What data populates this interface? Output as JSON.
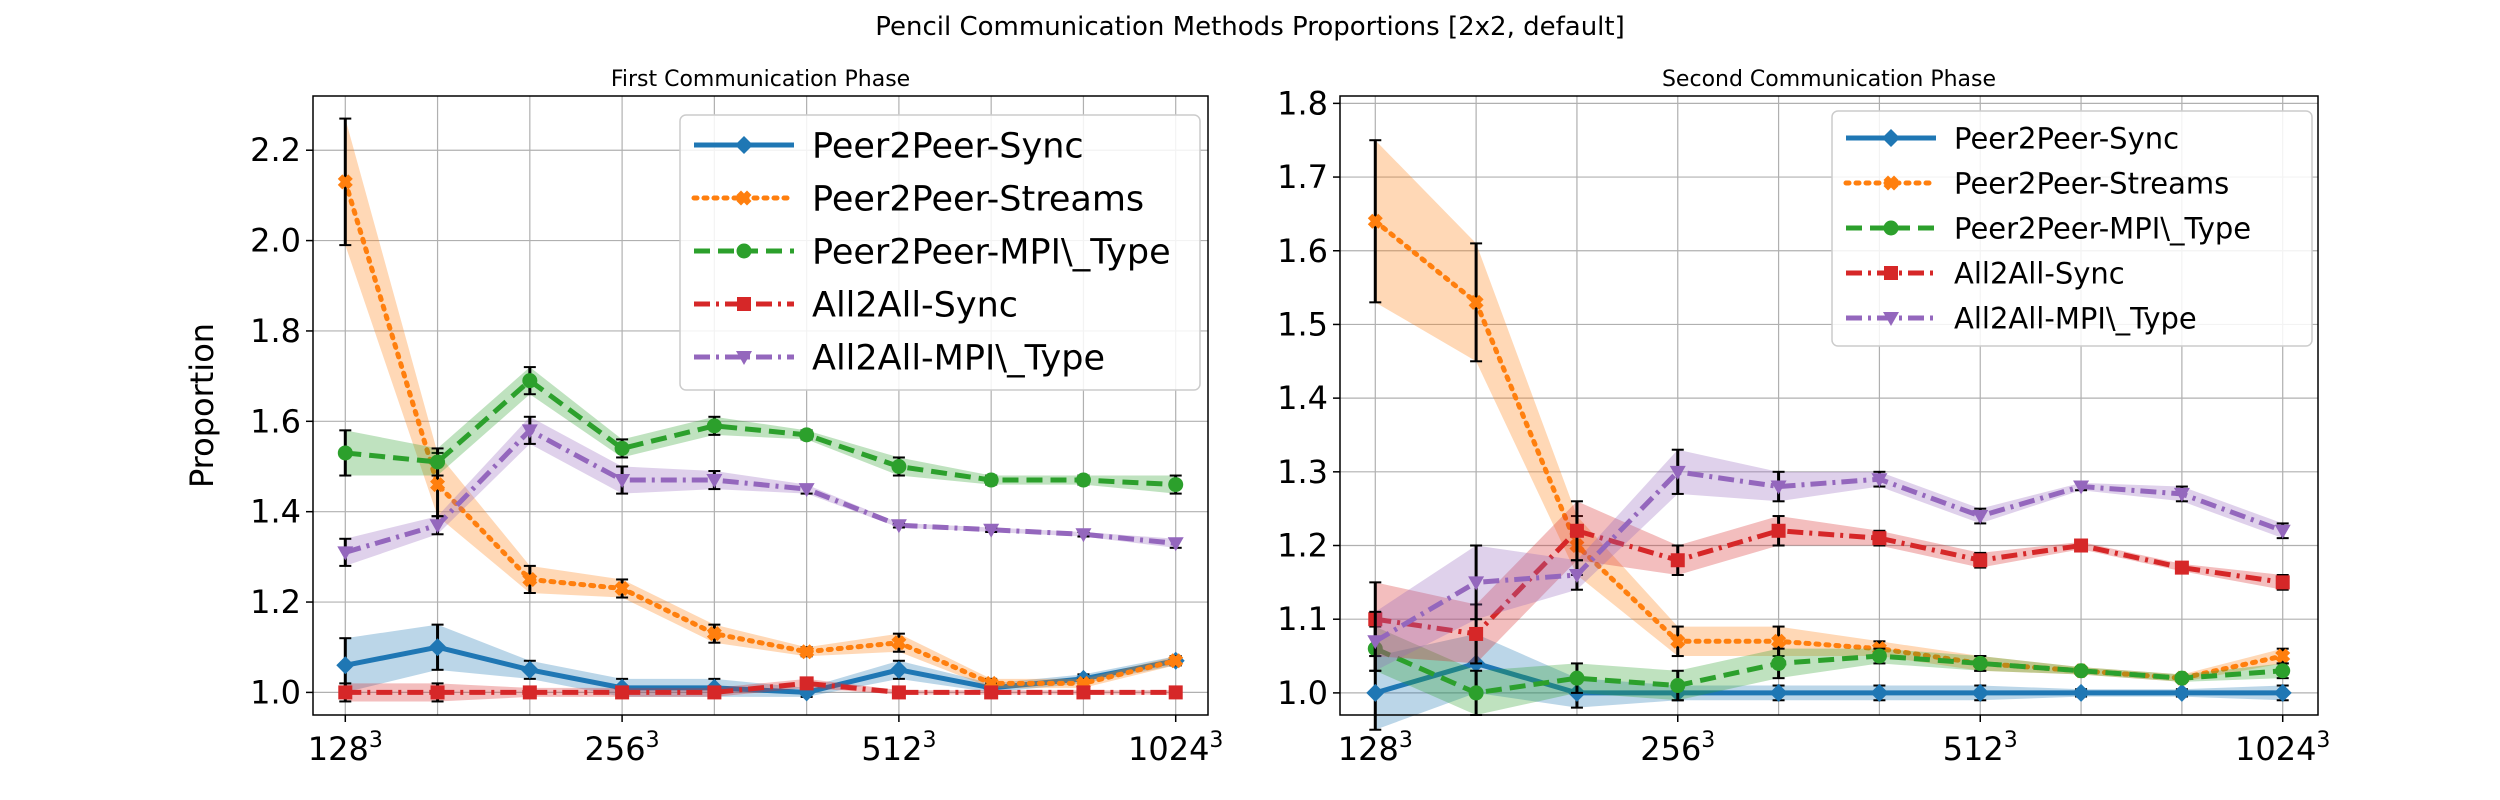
{
  "figure": {
    "title": "Pencil Communication Methods Proportions [2x2, default]"
  },
  "series_styles": [
    {
      "name": "Peer2Peer-Sync",
      "color": "#1f77b4",
      "dash": "",
      "marker": "diamond"
    },
    {
      "name": "Peer2Peer-Streams",
      "color": "#ff7f0e",
      "dash": "dot",
      "marker": "x"
    },
    {
      "name": "Peer2Peer-MPI\\_Type",
      "color": "#2ca02c",
      "dash": "dash",
      "marker": "circle"
    },
    {
      "name": "All2All-Sync",
      "color": "#d62728",
      "dash": "dashdot",
      "marker": "square"
    },
    {
      "name": "All2All-MPI\\_Type",
      "color": "#9467bd",
      "dash": "dashdot",
      "marker": "triangle-down"
    }
  ],
  "chart_data": [
    {
      "type": "line",
      "title": "First Communication Phase",
      "xlabel": "",
      "ylabel": "Proportion",
      "x": [
        0,
        1,
        2,
        3,
        4,
        5,
        6,
        7,
        8,
        9
      ],
      "x_ticks": [
        {
          "x": 0,
          "base": "128",
          "exp": "3"
        },
        {
          "x": 3,
          "base": "256",
          "exp": "3"
        },
        {
          "x": 6,
          "base": "512",
          "exp": "3"
        },
        {
          "x": 9,
          "base": "1024",
          "exp": "3"
        }
      ],
      "ylim": [
        0.95,
        2.32
      ],
      "yticks": [
        1.0,
        1.2,
        1.4,
        1.6,
        1.8,
        2.0,
        2.2
      ],
      "grid": true,
      "legend_position": "top-right",
      "series": [
        {
          "name": "Peer2Peer-Sync",
          "values": [
            1.06,
            1.1,
            1.05,
            1.01,
            1.01,
            1.0,
            1.05,
            1.01,
            1.03,
            1.07
          ],
          "err": [
            0.06,
            0.05,
            0.02,
            0.02,
            0.02,
            0.01,
            0.02,
            0.01,
            0.01,
            0.01
          ]
        },
        {
          "name": "Peer2Peer-Streams",
          "values": [
            2.13,
            1.46,
            1.25,
            1.23,
            1.13,
            1.09,
            1.11,
            1.02,
            1.02,
            1.07
          ],
          "err": [
            0.14,
            0.07,
            0.03,
            0.02,
            0.02,
            0.01,
            0.02,
            0.01,
            0.01,
            0.01
          ]
        },
        {
          "name": "Peer2Peer-MPI\\_Type",
          "values": [
            1.53,
            1.51,
            1.69,
            1.54,
            1.59,
            1.57,
            1.5,
            1.47,
            1.47,
            1.46
          ],
          "err": [
            0.05,
            0.03,
            0.03,
            0.02,
            0.02,
            0.01,
            0.02,
            0.01,
            0.01,
            0.02
          ]
        },
        {
          "name": "All2All-Sync",
          "values": [
            1.0,
            1.0,
            1.0,
            1.0,
            1.0,
            1.02,
            1.0,
            1.0,
            1.0,
            1.0
          ],
          "err": [
            0.02,
            0.02,
            0.01,
            0.01,
            0.01,
            0.01,
            0.005,
            0.005,
            0.005,
            0.005
          ]
        },
        {
          "name": "All2All-MPI\\_Type",
          "values": [
            1.31,
            1.37,
            1.58,
            1.47,
            1.47,
            1.45,
            1.37,
            1.36,
            1.35,
            1.33
          ],
          "err": [
            0.03,
            0.02,
            0.03,
            0.03,
            0.02,
            0.01,
            0.005,
            0.005,
            0.005,
            0.01
          ]
        }
      ]
    },
    {
      "type": "line",
      "title": "Second Communication Phase",
      "xlabel": "",
      "ylabel": "Proportion",
      "x": [
        0,
        1,
        2,
        3,
        4,
        5,
        6,
        7,
        8,
        9
      ],
      "x_ticks": [
        {
          "x": 0,
          "base": "128",
          "exp": "3"
        },
        {
          "x": 3,
          "base": "256",
          "exp": "3"
        },
        {
          "x": 6,
          "base": "512",
          "exp": "3"
        },
        {
          "x": 9,
          "base": "1024",
          "exp": "3"
        }
      ],
      "ylim": [
        0.97,
        1.81
      ],
      "yticks": [
        1.0,
        1.1,
        1.2,
        1.3,
        1.4,
        1.5,
        1.6,
        1.7,
        1.8
      ],
      "grid": true,
      "legend_position": "top-right",
      "series": [
        {
          "name": "Peer2Peer-Sync",
          "values": [
            1.0,
            1.04,
            1.0,
            1.0,
            1.0,
            1.0,
            1.0,
            1.0,
            1.0,
            1.0
          ],
          "err": [
            0.05,
            0.04,
            0.02,
            0.01,
            0.01,
            0.01,
            0.01,
            0.005,
            0.005,
            0.01
          ]
        },
        {
          "name": "Peer2Peer-Streams",
          "values": [
            1.64,
            1.53,
            1.2,
            1.07,
            1.07,
            1.06,
            1.04,
            1.03,
            1.02,
            1.05
          ],
          "err": [
            0.11,
            0.08,
            0.04,
            0.02,
            0.02,
            0.01,
            0.01,
            0.005,
            0.005,
            0.01
          ]
        },
        {
          "name": "Peer2Peer-MPI\\_Type",
          "values": [
            1.06,
            1.0,
            1.02,
            1.01,
            1.04,
            1.05,
            1.04,
            1.03,
            1.02,
            1.03
          ],
          "err": [
            0.03,
            0.03,
            0.02,
            0.02,
            0.02,
            0.01,
            0.01,
            0.005,
            0.005,
            0.01
          ]
        },
        {
          "name": "All2All-Sync",
          "values": [
            1.1,
            1.08,
            1.22,
            1.18,
            1.22,
            1.21,
            1.18,
            1.2,
            1.17,
            1.15
          ],
          "err": [
            0.05,
            0.04,
            0.04,
            0.02,
            0.02,
            0.01,
            0.01,
            0.005,
            0.005,
            0.01
          ]
        },
        {
          "name": "All2All-MPI\\_Type",
          "values": [
            1.07,
            1.15,
            1.16,
            1.3,
            1.28,
            1.29,
            1.24,
            1.28,
            1.27,
            1.22
          ],
          "err": [
            0.04,
            0.05,
            0.02,
            0.03,
            0.02,
            0.01,
            0.01,
            0.005,
            0.01,
            0.01
          ]
        }
      ]
    }
  ]
}
